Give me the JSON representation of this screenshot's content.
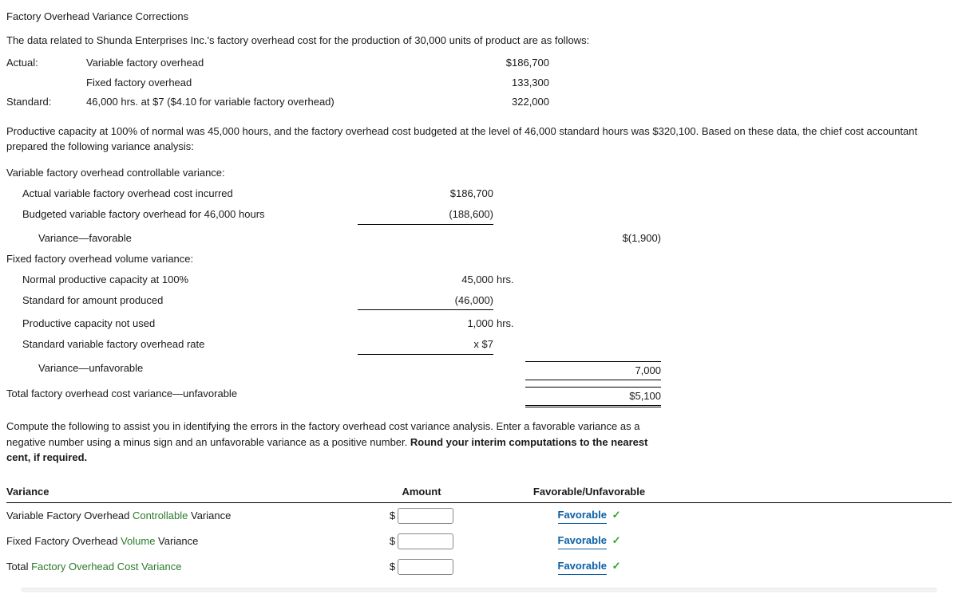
{
  "title": "Factory Overhead Variance Corrections",
  "intro": "The data related to Shunda Enterprises Inc.'s factory overhead cost for the production of 30,000 units of product are as follows:",
  "facts": {
    "rows": [
      {
        "label": "Actual:",
        "desc": "Variable factory overhead",
        "val": "$186,700"
      },
      {
        "label": "",
        "desc": "Fixed factory overhead",
        "val": "133,300"
      },
      {
        "label": "Standard:",
        "desc": "46,000 hrs. at $7 ($4.10 for variable factory overhead)",
        "val": "322,000"
      }
    ]
  },
  "para1": "Productive capacity at 100% of normal was 45,000 hours, and the factory overhead cost budgeted at the level of 46,000 standard hours was $320,100. Based on these data, the chief cost accountant prepared the following variance analysis:",
  "analysis": {
    "h1": "Variable factory overhead controllable variance:",
    "r1": {
      "label": "Actual variable factory overhead cost incurred",
      "a": "$186,700"
    },
    "r2": {
      "label": "Budgeted variable factory overhead for 46,000 hours",
      "a": "(188,600)"
    },
    "r3": {
      "label": "Variance—favorable",
      "b": "$(1,900)"
    },
    "h2": "Fixed factory overhead volume variance:",
    "r4": {
      "label": "Normal productive capacity at 100%",
      "a": "45,000",
      "unit": "hrs."
    },
    "r5": {
      "label": "Standard for amount produced",
      "a": "(46,000)"
    },
    "r6": {
      "label": "Productive capacity not used",
      "a": "1,000",
      "unit": "hrs."
    },
    "r7": {
      "label": "Standard variable factory overhead rate",
      "a": "x $7"
    },
    "r8": {
      "label": "Variance—unfavorable",
      "b": "7,000"
    },
    "r9": {
      "label": "Total factory overhead cost variance—unfavorable",
      "b": "$5,100"
    }
  },
  "para2_a": "Compute the following to assist you in identifying the errors in the factory overhead cost variance analysis. Enter a favorable variance as a negative number using a minus sign and an unfavorable variance as a positive number. ",
  "para2_b": "Round your interim computations to the nearest cent, if required.",
  "answers": {
    "headers": {
      "c1": "Variance",
      "c2": "Amount",
      "c3": "Favorable/Unfavorable"
    },
    "rows": [
      {
        "pre": "Variable Factory Overhead ",
        "link": "Controllable",
        "post": " Variance",
        "sel": "Favorable"
      },
      {
        "pre": "Fixed Factory Overhead ",
        "link": "Volume",
        "post": " Variance",
        "sel": "Favorable"
      },
      {
        "pre": "Total ",
        "link": "Factory Overhead Cost Variance",
        "post": "",
        "sel": "Favorable"
      }
    ],
    "dollar": "$"
  },
  "colors": {
    "link_green": "#2a7a2a",
    "select_blue": "#0b5fa5",
    "check_green": "#2fa52f"
  }
}
